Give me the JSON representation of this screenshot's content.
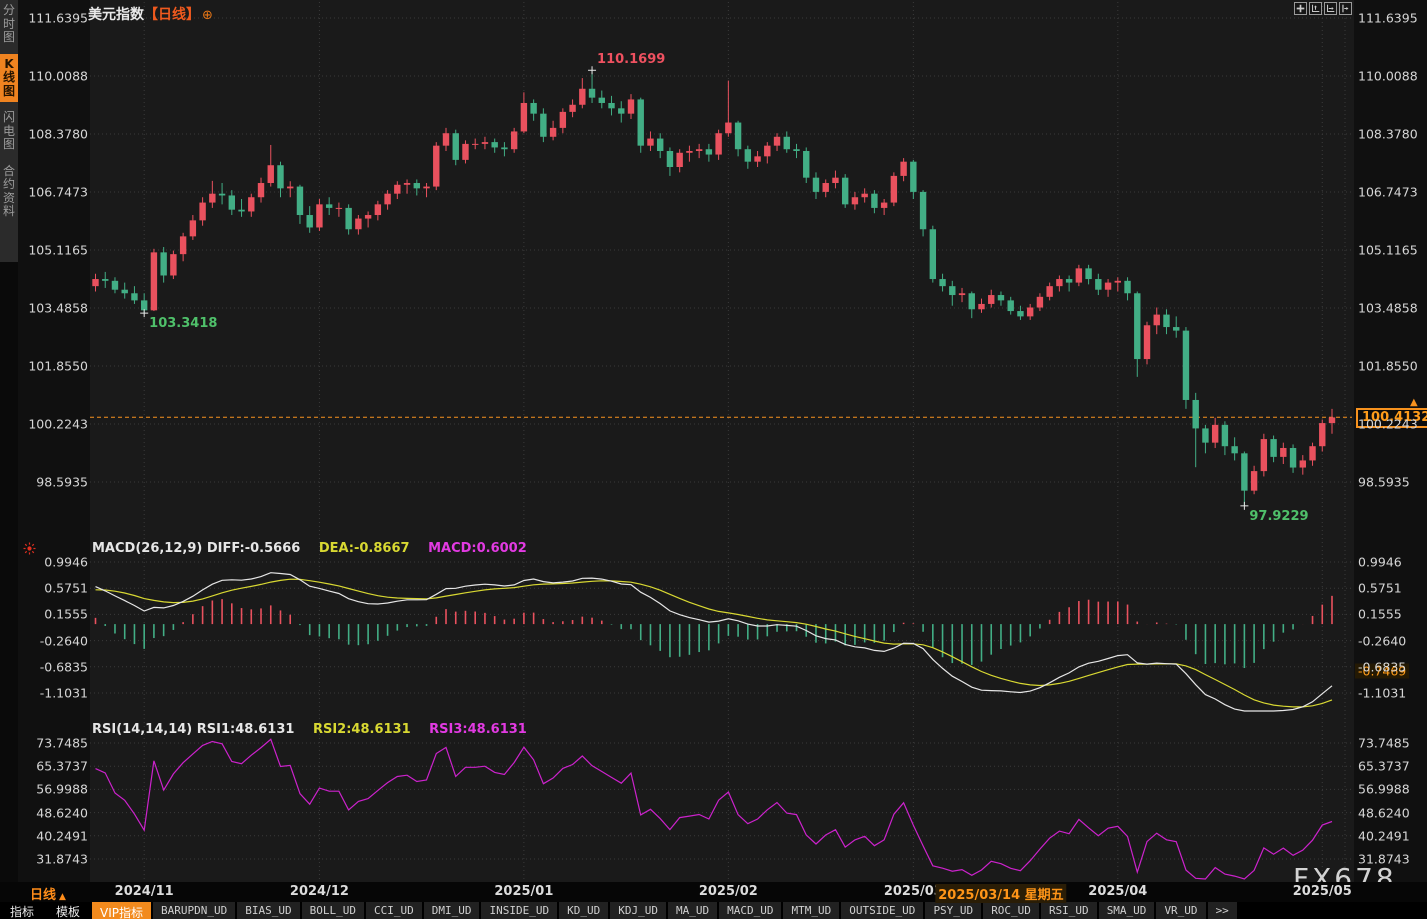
{
  "header": {
    "title": "美元指数",
    "period_tag": "【日线】",
    "add_icon": "⊕"
  },
  "watermark": "FX678",
  "sidebar": {
    "items": [
      {
        "label": "分时图",
        "active": false
      },
      {
        "label": "K线图",
        "active": true
      },
      {
        "label": "闪电图",
        "active": false
      },
      {
        "label": "合约资料",
        "active": false
      }
    ]
  },
  "topbar_icons": [
    {
      "name": "pan-icon"
    },
    {
      "name": "scale-y-icon"
    },
    {
      "name": "scale-x-icon"
    },
    {
      "name": "collapse-right-icon"
    }
  ],
  "main_chart": {
    "y_axis_labels": [
      "111.6395",
      "110.0088",
      "108.3780",
      "106.7473",
      "105.1165",
      "103.4858",
      "101.8550",
      "100.2243",
      "98.5935"
    ],
    "current_price_label": "100.4132",
    "price_arrow": "▲",
    "annotations": {
      "high": "110.1699",
      "low_nov": "103.3418",
      "low_apr": "97.9229"
    }
  },
  "macd_panel": {
    "header": {
      "part1": "MACD(26,12,9) DIFF:-0.5666",
      "part2": "DEA:-0.8667",
      "part3": "MACD:0.6002"
    },
    "y_axis_labels": [
      "0.9946",
      "0.5751",
      "0.1555",
      "-0.2640",
      "-0.6835",
      "-1.1031"
    ],
    "highlight_value": "-0.7469"
  },
  "rsi_panel": {
    "header": {
      "part1": "RSI(14,14,14) RSI1:48.6131",
      "part2": "RSI2:48.6131",
      "part3": "RSI3:48.6131"
    },
    "y_axis_labels": [
      "73.7485",
      "65.3737",
      "56.9988",
      "48.6240",
      "40.2491",
      "31.8743"
    ]
  },
  "date_axis": {
    "period_label": "日线",
    "period_arrow": "▲",
    "highlight": "2025/03/14 星期五",
    "highlight_idx": 93
  },
  "toolbar": {
    "items": [
      {
        "label": "指标",
        "style": "plain"
      },
      {
        "label": "模板",
        "style": "plain"
      },
      {
        "label": "VIP指标",
        "style": "active"
      },
      {
        "label": "BARUPDN_UD",
        "style": "box"
      },
      {
        "label": "BIAS_UD",
        "style": "box"
      },
      {
        "label": "BOLL_UD",
        "style": "box"
      },
      {
        "label": "CCI_UD",
        "style": "box"
      },
      {
        "label": "DMI_UD",
        "style": "box"
      },
      {
        "label": "INSIDE_UD",
        "style": "box"
      },
      {
        "label": "KD_UD",
        "style": "box"
      },
      {
        "label": "KDJ_UD",
        "style": "box"
      },
      {
        "label": "MA_UD",
        "style": "box"
      },
      {
        "label": "MACD_UD",
        "style": "box"
      },
      {
        "label": "MTM_UD",
        "style": "box"
      },
      {
        "label": "OUTSIDE_UD",
        "style": "box"
      },
      {
        "label": "PSY_UD",
        "style": "box"
      },
      {
        "label": "ROC_UD",
        "style": "box"
      },
      {
        "label": "RSI_UD",
        "style": "box"
      },
      {
        "label": "SMA_UD",
        "style": "box"
      },
      {
        "label": "VR_UD",
        "style": "box"
      },
      {
        "label": ">>",
        "style": "box"
      }
    ]
  },
  "colors": {
    "up": "#e9515e",
    "down": "#42ae85",
    "accent_orange": "#f7921e",
    "diff_line": "#e6e6e6",
    "dea_line": "#d8d832",
    "macd_value": "#e23ae2",
    "rsi_line": "#cc22cc",
    "anno_red": "#ef5160",
    "anno_green": "#4fc06a",
    "grid": "#3b3b3b",
    "plot_bg": "#1a1a1a"
  },
  "chart_data": {
    "type": "candlestick+macd+rsi",
    "symbol": "美元指数",
    "period": "日线",
    "price_axis": {
      "min": 98.5935,
      "max": 111.6395,
      "ticks": [
        111.6395,
        110.0088,
        108.378,
        106.7473,
        105.1165,
        103.4858,
        101.855,
        100.2243,
        98.5935
      ]
    },
    "current_price": 100.4132,
    "month_ticks": [
      {
        "label": "2024/11",
        "idx": 5
      },
      {
        "label": "2024/12",
        "idx": 23
      },
      {
        "label": "2025/01",
        "idx": 44
      },
      {
        "label": "2025/02",
        "idx": 65
      },
      {
        "label": "2025/03",
        "idx": 84
      },
      {
        "label": "2025/04",
        "idx": 105
      },
      {
        "label": "2025/05",
        "idx": 126
      }
    ],
    "annotations": [
      {
        "text": "110.1699",
        "idx": 51,
        "price": 110.1699,
        "dir": "high",
        "color": "#ef5160"
      },
      {
        "text": "103.3418",
        "idx": 5,
        "price": 103.3418,
        "dir": "low",
        "color": "#4fc06a"
      },
      {
        "text": "97.9229",
        "idx": 118,
        "price": 97.9229,
        "dir": "low",
        "color": "#4fc06a"
      }
    ],
    "macd": {
      "params": [
        26,
        12,
        9
      ],
      "diff": -0.5666,
      "dea": -0.8667,
      "macd": 0.6002,
      "axis_ticks": [
        0.9946,
        0.5751,
        0.1555,
        -0.264,
        -0.6835,
        -1.1031
      ],
      "highlight": -0.7469
    },
    "rsi": {
      "params": [
        14,
        14,
        14
      ],
      "rsi1": 48.6131,
      "rsi2": 48.6131,
      "rsi3": 48.6131,
      "axis_ticks": [
        73.7485,
        65.3737,
        56.9988,
        48.624,
        40.2491,
        31.8743
      ]
    },
    "candles": [
      [
        104.1,
        104.45,
        103.95,
        104.3
      ],
      [
        104.3,
        104.5,
        104.05,
        104.25
      ],
      [
        104.25,
        104.35,
        103.9,
        104.0
      ],
      [
        104.0,
        104.2,
        103.75,
        103.9
      ],
      [
        103.9,
        104.1,
        103.6,
        103.7
      ],
      [
        103.7,
        103.9,
        103.34,
        103.42
      ],
      [
        103.42,
        105.15,
        103.4,
        105.05
      ],
      [
        105.05,
        105.2,
        104.2,
        104.4
      ],
      [
        104.4,
        105.1,
        104.3,
        105.0
      ],
      [
        105.0,
        105.6,
        104.8,
        105.5
      ],
      [
        105.5,
        106.1,
        105.4,
        105.95
      ],
      [
        105.95,
        106.6,
        105.8,
        106.45
      ],
      [
        106.45,
        107.06,
        106.3,
        106.7
      ],
      [
        106.7,
        107.0,
        106.4,
        106.65
      ],
      [
        106.65,
        106.8,
        106.1,
        106.25
      ],
      [
        106.25,
        106.55,
        106.05,
        106.2
      ],
      [
        106.2,
        106.7,
        106.05,
        106.6
      ],
      [
        106.6,
        107.15,
        106.45,
        107.0
      ],
      [
        107.0,
        108.07,
        106.9,
        107.5
      ],
      [
        107.5,
        107.6,
        106.6,
        106.85
      ],
      [
        106.85,
        107.05,
        106.6,
        106.9
      ],
      [
        106.9,
        106.95,
        105.85,
        106.1
      ],
      [
        106.1,
        106.35,
        105.6,
        105.75
      ],
      [
        105.75,
        106.55,
        105.65,
        106.4
      ],
      [
        106.4,
        106.6,
        106.1,
        106.3
      ],
      [
        106.3,
        106.45,
        106.05,
        106.3
      ],
      [
        106.3,
        106.4,
        105.55,
        105.7
      ],
      [
        105.7,
        106.1,
        105.55,
        106.0
      ],
      [
        106.0,
        106.2,
        105.75,
        106.1
      ],
      [
        106.1,
        106.5,
        105.95,
        106.4
      ],
      [
        106.4,
        106.8,
        106.25,
        106.7
      ],
      [
        106.7,
        107.05,
        106.55,
        106.95
      ],
      [
        106.95,
        107.1,
        106.7,
        107.0
      ],
      [
        107.0,
        107.1,
        106.65,
        106.85
      ],
      [
        106.85,
        107.0,
        106.6,
        106.9
      ],
      [
        106.9,
        108.15,
        106.8,
        108.05
      ],
      [
        108.05,
        108.55,
        107.9,
        108.4
      ],
      [
        108.4,
        108.5,
        107.5,
        107.65
      ],
      [
        107.65,
        108.2,
        107.55,
        108.1
      ],
      [
        108.1,
        108.25,
        107.95,
        108.1
      ],
      [
        108.1,
        108.3,
        107.95,
        108.15
      ],
      [
        108.15,
        108.25,
        107.85,
        108.0
      ],
      [
        108.0,
        108.15,
        107.75,
        107.95
      ],
      [
        107.95,
        108.55,
        107.85,
        108.45
      ],
      [
        108.45,
        109.55,
        108.4,
        109.25
      ],
      [
        109.25,
        109.35,
        108.75,
        108.95
      ],
      [
        108.95,
        109.1,
        108.15,
        108.3
      ],
      [
        108.3,
        108.75,
        108.2,
        108.55
      ],
      [
        108.55,
        109.1,
        108.4,
        109.0
      ],
      [
        109.0,
        109.35,
        108.85,
        109.2
      ],
      [
        109.2,
        109.95,
        109.1,
        109.65
      ],
      [
        109.65,
        110.17,
        109.25,
        109.4
      ],
      [
        109.4,
        109.6,
        109.1,
        109.25
      ],
      [
        109.25,
        109.45,
        108.9,
        109.1
      ],
      [
        109.1,
        109.3,
        108.7,
        108.95
      ],
      [
        108.95,
        109.5,
        108.8,
        109.35
      ],
      [
        109.35,
        109.4,
        107.85,
        108.05
      ],
      [
        108.05,
        108.45,
        107.9,
        108.25
      ],
      [
        108.25,
        108.4,
        107.7,
        107.9
      ],
      [
        107.9,
        108.0,
        107.2,
        107.45
      ],
      [
        107.45,
        107.95,
        107.3,
        107.85
      ],
      [
        107.85,
        108.05,
        107.6,
        107.9
      ],
      [
        107.9,
        108.1,
        107.7,
        107.95
      ],
      [
        107.95,
        108.1,
        107.6,
        107.8
      ],
      [
        107.8,
        108.5,
        107.65,
        108.4
      ],
      [
        108.4,
        109.88,
        108.3,
        108.7
      ],
      [
        108.7,
        108.75,
        107.75,
        107.95
      ],
      [
        107.95,
        108.05,
        107.4,
        107.6
      ],
      [
        107.6,
        107.9,
        107.45,
        107.75
      ],
      [
        107.75,
        108.15,
        107.55,
        108.05
      ],
      [
        108.05,
        108.4,
        107.9,
        108.3
      ],
      [
        108.3,
        108.45,
        107.85,
        107.95
      ],
      [
        107.95,
        108.1,
        107.7,
        107.9
      ],
      [
        107.9,
        108.0,
        107.0,
        107.15
      ],
      [
        107.15,
        107.3,
        106.55,
        106.75
      ],
      [
        106.75,
        107.1,
        106.6,
        107.0
      ],
      [
        107.0,
        107.35,
        106.85,
        107.15
      ],
      [
        107.15,
        107.25,
        106.3,
        106.4
      ],
      [
        106.4,
        106.75,
        106.25,
        106.6
      ],
      [
        106.6,
        106.85,
        106.45,
        106.7
      ],
      [
        106.7,
        106.8,
        106.15,
        106.3
      ],
      [
        106.3,
        106.55,
        106.1,
        106.45
      ],
      [
        106.45,
        107.3,
        106.35,
        107.2
      ],
      [
        107.2,
        107.7,
        107.05,
        107.6
      ],
      [
        107.6,
        107.65,
        106.55,
        106.75
      ],
      [
        106.75,
        106.8,
        105.5,
        105.7
      ],
      [
        105.7,
        105.8,
        104.2,
        104.3
      ],
      [
        104.3,
        104.45,
        103.95,
        104.1
      ],
      [
        104.1,
        104.25,
        103.55,
        103.85
      ],
      [
        103.85,
        104.05,
        103.65,
        103.9
      ],
      [
        103.9,
        103.95,
        103.2,
        103.45
      ],
      [
        103.45,
        103.75,
        103.35,
        103.6
      ],
      [
        103.6,
        104.0,
        103.5,
        103.85
      ],
      [
        103.85,
        103.95,
        103.55,
        103.7
      ],
      [
        103.7,
        103.8,
        103.3,
        103.4
      ],
      [
        103.4,
        103.55,
        103.15,
        103.25
      ],
      [
        103.25,
        103.6,
        103.15,
        103.5
      ],
      [
        103.5,
        103.9,
        103.4,
        103.8
      ],
      [
        103.8,
        104.2,
        103.7,
        104.1
      ],
      [
        104.1,
        104.4,
        103.95,
        104.3
      ],
      [
        104.3,
        104.4,
        103.95,
        104.2
      ],
      [
        104.2,
        104.7,
        104.1,
        104.6
      ],
      [
        104.6,
        104.7,
        104.15,
        104.3
      ],
      [
        104.3,
        104.45,
        103.85,
        104.0
      ],
      [
        104.0,
        104.3,
        103.8,
        104.2
      ],
      [
        104.2,
        104.35,
        103.95,
        104.25
      ],
      [
        104.25,
        104.35,
        103.7,
        103.9
      ],
      [
        103.9,
        103.95,
        101.55,
        102.05
      ],
      [
        102.05,
        103.1,
        101.9,
        103.0
      ],
      [
        103.0,
        103.5,
        102.75,
        103.3
      ],
      [
        103.3,
        103.45,
        102.75,
        102.95
      ],
      [
        102.95,
        103.25,
        102.65,
        102.85
      ],
      [
        102.85,
        102.95,
        100.65,
        100.9
      ],
      [
        100.9,
        101.1,
        99.01,
        100.1
      ],
      [
        100.1,
        100.2,
        99.4,
        99.7
      ],
      [
        99.7,
        100.4,
        99.55,
        100.2
      ],
      [
        100.2,
        100.3,
        99.35,
        99.6
      ],
      [
        99.6,
        99.85,
        99.2,
        99.4
      ],
      [
        99.4,
        99.45,
        97.92,
        98.35
      ],
      [
        98.35,
        99.05,
        98.25,
        98.9
      ],
      [
        98.9,
        99.95,
        98.75,
        99.8
      ],
      [
        99.8,
        99.9,
        99.15,
        99.3
      ],
      [
        99.3,
        99.7,
        99.1,
        99.55
      ],
      [
        99.55,
        99.65,
        98.85,
        99.0
      ],
      [
        99.0,
        99.35,
        98.8,
        99.2
      ],
      [
        99.2,
        99.7,
        99.05,
        99.6
      ],
      [
        99.6,
        100.35,
        99.45,
        100.25
      ],
      [
        100.25,
        100.65,
        99.95,
        100.41
      ]
    ]
  }
}
